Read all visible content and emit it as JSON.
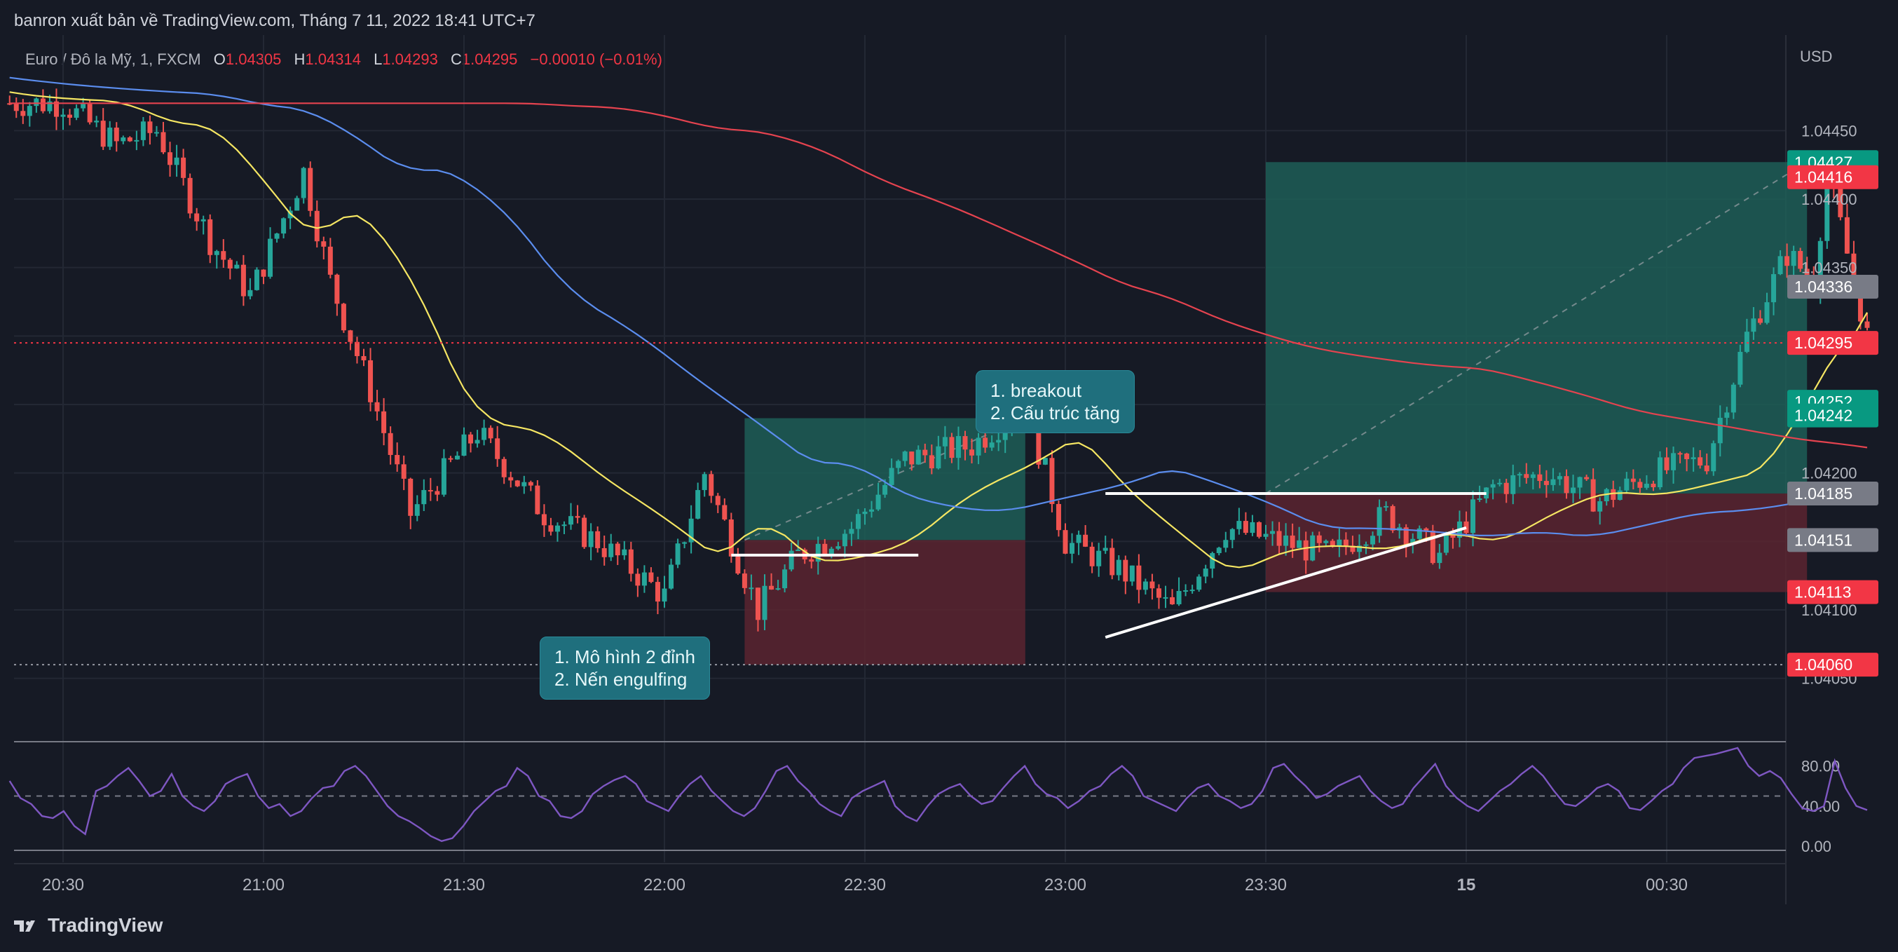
{
  "header": {
    "publisher_line": "banron xuất bản về TradingView.com, Tháng 7 11, 2022 18:41 UTC+7"
  },
  "symbol": {
    "name": "Euro / Đô la Mỹ, 1, FXCM",
    "open_label": "O",
    "open": "1.04305",
    "high_label": "H",
    "high": "1.04314",
    "low_label": "L",
    "low": "1.04293",
    "close_label": "C",
    "close": "1.04295",
    "change": "−0.00010 (−0.01%)"
  },
  "currency": "USD",
  "annotations": {
    "callout_1_line1": "1. Mô hình 2 đỉnh",
    "callout_1_line2": "2. Nến engulfing",
    "callout_2_line1": "1. breakout",
    "callout_2_line2": "2. Cấu trúc tăng"
  },
  "logo_text": "TradingView",
  "colors": {
    "background": "#161a25",
    "bull": "#26a69a",
    "bear": "#ef5350",
    "ema_fast": "#f5e663",
    "ema_mid": "#5b8dee",
    "ema_slow": "#e5434f",
    "rsi": "#7e57c2",
    "target_zone": "#1d5e57",
    "stop_zone": "#5a2530",
    "callout_bg": "#1f6f7d"
  },
  "chart_data": [
    {
      "type": "candlestick",
      "title": "",
      "xlabel": "",
      "ylabel": "USD",
      "ylim": [
        1.0403,
        1.045
      ],
      "x_ticks": [
        "20:30",
        "21:00",
        "21:30",
        "22:00",
        "22:30",
        "23:00",
        "23:30",
        "15",
        "00:30"
      ],
      "y_ticks": [
        "1.04050",
        "1.04100",
        "1.04200",
        "1.04350",
        "1.04400",
        "1.04450"
      ],
      "price_labels": [
        {
          "value": "1.04427",
          "color": "#089981"
        },
        {
          "value": "1.04416",
          "color": "#f23645"
        },
        {
          "value": "1.04336",
          "color": "#787b86"
        },
        {
          "value": "1.04295",
          "color": "#f23645"
        },
        {
          "value": "1.04252",
          "color": "#089981"
        },
        {
          "value": "1.04242",
          "color": "#089981"
        },
        {
          "value": "1.04185",
          "color": "#787b86"
        },
        {
          "value": "1.04151",
          "color": "#787b86"
        },
        {
          "value": "1.04113",
          "color": "#f23645"
        },
        {
          "value": "1.04060",
          "color": "#f23645"
        }
      ],
      "series": [
        {
          "kind": "ema",
          "values_start": 1.045,
          "values_end": 1.0425
        },
        {
          "kind": "ema",
          "values_start": 1.045,
          "values_end": 1.04252
        },
        {
          "kind": "ema",
          "values_start": 1.0448,
          "values_end": 1.04242
        }
      ],
      "trades": [
        {
          "entry": 1.04151,
          "target": 1.0424,
          "stop": 1.0406
        },
        {
          "entry": 1.04185,
          "target": 1.04427,
          "stop": 1.04113
        }
      ],
      "grid": true
    },
    {
      "type": "line",
      "title": "",
      "ylabel": "",
      "ylim": [
        0,
        100
      ],
      "y_ticks": [
        "80.00",
        "40.00",
        "0.00"
      ],
      "series": [
        {
          "values": [
            65,
            48,
            42,
            30,
            28,
            35,
            20,
            12,
            55,
            60,
            70,
            78,
            65,
            50,
            55,
            72,
            50,
            40,
            35,
            45,
            62,
            68,
            72,
            50,
            38,
            42,
            30,
            35,
            48,
            58,
            60,
            75,
            80,
            70,
            55,
            40,
            30,
            25,
            18,
            10,
            5,
            8,
            20,
            35,
            45,
            55,
            60,
            78,
            70,
            50,
            45,
            30,
            28,
            35,
            52,
            60,
            66,
            70,
            62,
            45,
            40,
            35,
            50,
            62,
            70,
            55,
            45,
            35,
            30,
            38,
            55,
            75,
            80,
            65,
            55,
            42,
            35,
            30,
            48,
            55,
            60,
            65,
            40,
            30,
            25,
            40,
            52,
            58,
            62,
            50,
            42,
            45,
            58,
            70,
            80,
            62,
            52,
            48,
            38,
            45,
            55,
            60,
            72,
            80,
            70,
            50,
            45,
            40,
            35,
            48,
            58,
            62,
            50,
            45,
            38,
            42,
            55,
            78,
            82,
            70,
            60,
            48,
            52,
            60,
            65,
            70,
            55,
            45,
            38,
            42,
            58,
            70,
            82,
            60,
            48,
            40,
            35,
            45,
            55,
            62,
            72,
            80,
            70,
            55,
            42,
            40,
            48,
            58,
            62,
            55,
            38,
            36,
            45,
            55,
            62,
            78,
            88,
            90,
            92,
            95,
            98,
            80,
            70,
            75,
            68,
            52,
            38,
            35,
            40,
            85,
            58,
            40,
            36
          ]
        }
      ],
      "grid": true
    }
  ]
}
